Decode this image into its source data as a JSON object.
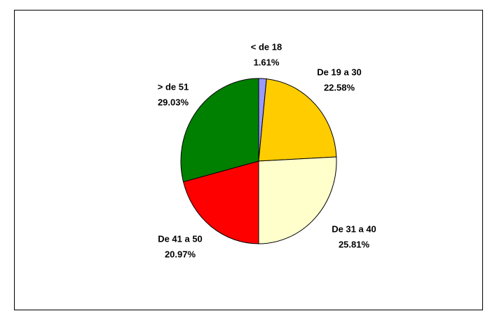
{
  "chart_data": {
    "type": "pie",
    "categories": [
      "< de 18",
      "De 19 a 30",
      "De 31 a 40",
      "De 41 a 50",
      "> de 51"
    ],
    "values": [
      1.61,
      22.58,
      25.81,
      20.97,
      29.03
    ],
    "value_labels": [
      "1.61%",
      "22.58%",
      "25.81%",
      "20.97%",
      "29.03%"
    ],
    "colors": [
      "#9999ff",
      "#ffcc00",
      "#ffffcc",
      "#ff0000",
      "#008000"
    ]
  }
}
